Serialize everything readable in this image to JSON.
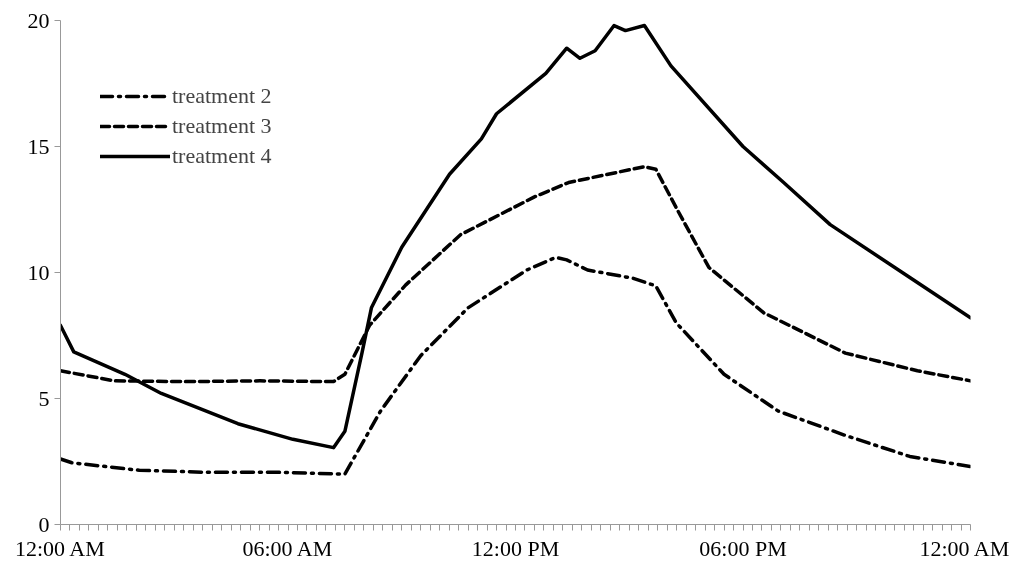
{
  "chart_data": {
    "type": "line",
    "xlim": [
      0,
      24
    ],
    "ylim": [
      0,
      20
    ],
    "xticks": [
      {
        "value": 0,
        "label": "12:00 AM"
      },
      {
        "value": 6,
        "label": "06:00 AM"
      },
      {
        "value": 12,
        "label": "12:00 PM"
      },
      {
        "value": 18,
        "label": "06:00 PM"
      },
      {
        "value": 24,
        "label": "12:00 AM"
      }
    ],
    "yticks": [
      0,
      5,
      10,
      15,
      20
    ],
    "grid": false,
    "legend": "top left",
    "marker": "none",
    "series": [
      {
        "name": "treatment 2",
        "color": "#000000",
        "line_style": "dashdot",
        "x": [
          0,
          0.3,
          2.08,
          3.9,
          5.75,
          7.5,
          8.44,
          9.5,
          10.75,
          12.3,
          13.06,
          13.35,
          13.9,
          15.1,
          15.7,
          16.24,
          17.5,
          18.93,
          20.67,
          22.4,
          24
        ],
        "values": [
          2.6,
          2.45,
          2.15,
          2.07,
          2.07,
          2.0,
          4.5,
          6.7,
          8.6,
          10.1,
          10.6,
          10.5,
          10.1,
          9.77,
          9.47,
          8.0,
          5.96,
          4.5,
          3.55,
          2.7,
          2.3
        ]
      },
      {
        "name": "treatment 3",
        "color": "#000000",
        "line_style": "dashed",
        "x": [
          0,
          1.42,
          3.3,
          5.26,
          7.2,
          7.5,
          8.15,
          9.1,
          10.55,
          12.5,
          13.4,
          15.4,
          15.7,
          16.3,
          17.1,
          18.55,
          20.7,
          22.6,
          24
        ],
        "values": [
          6.1,
          5.7,
          5.67,
          5.7,
          5.67,
          5.96,
          7.9,
          9.5,
          11.5,
          13.0,
          13.57,
          14.2,
          14.1,
          12.4,
          10.2,
          8.4,
          6.8,
          6.1,
          5.7
        ]
      },
      {
        "name": "treatment 4",
        "color": "#000000",
        "line_style": "solid",
        "x": [
          0,
          0.35,
          1.7,
          2.66,
          4.68,
          6.13,
          7.2,
          7.5,
          7.95,
          8.2,
          9.0,
          10.26,
          11.1,
          11.5,
          12.8,
          13.35,
          13.7,
          14.1,
          14.6,
          14.9,
          15.4,
          16.1,
          18.0,
          19.05,
          20.3,
          22.4,
          24
        ],
        "values": [
          7.9,
          6.85,
          5.96,
          5.2,
          4.0,
          3.38,
          3.05,
          3.7,
          6.8,
          8.6,
          11.0,
          13.9,
          15.3,
          16.3,
          17.9,
          18.9,
          18.5,
          18.8,
          19.8,
          19.6,
          19.8,
          18.2,
          15.0,
          13.6,
          11.9,
          9.8,
          8.2
        ]
      }
    ]
  }
}
